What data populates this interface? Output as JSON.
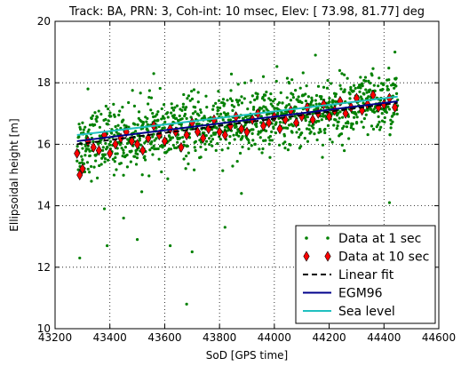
{
  "chart_data": {
    "type": "scatter",
    "title": "Track: BA, PRN: 3, Coh-int: 10 msec, Elev: [ 73.98,  81.77] deg",
    "xlabel": "SoD [GPS time]",
    "ylabel": "Ellipsoidal height [m]",
    "xlim": [
      43200,
      44600
    ],
    "ylim": [
      10,
      20
    ],
    "xticks": [
      43200,
      43400,
      43600,
      43800,
      44000,
      44200,
      44400,
      44600
    ],
    "yticks": [
      10,
      12,
      14,
      16,
      18,
      20
    ],
    "grid": true,
    "legend_position": "bottom-right",
    "x_range_data": [
      43280,
      44450
    ],
    "series": [
      {
        "name": "Data at 1 sec",
        "kind": "points",
        "marker": "dot",
        "color": "#008000",
        "trend": [
          [
            43280,
            16.0
          ],
          [
            44450,
            17.4
          ]
        ],
        "spread": 0.7,
        "outliers": [
          [
            43290,
            12.3
          ],
          [
            43380,
            13.9
          ],
          [
            43390,
            12.7
          ],
          [
            43450,
            13.6
          ],
          [
            43500,
            12.9
          ],
          [
            43620,
            12.7
          ],
          [
            43680,
            10.8
          ],
          [
            43700,
            12.5
          ],
          [
            43820,
            13.3
          ],
          [
            43880,
            14.4
          ],
          [
            44420,
            14.1
          ],
          [
            43560,
            18.3
          ],
          [
            44150,
            18.9
          ],
          [
            44440,
            19.0
          ],
          [
            43320,
            17.8
          ],
          [
            43960,
            18.2
          ]
        ]
      },
      {
        "name": "Data at 10 sec",
        "kind": "points",
        "marker": "diamond",
        "color": "#ff0000",
        "values": [
          [
            43280,
            15.7
          ],
          [
            43290,
            15.0
          ],
          [
            43300,
            15.2
          ],
          [
            43320,
            16.1
          ],
          [
            43340,
            15.9
          ],
          [
            43360,
            15.8
          ],
          [
            43380,
            16.3
          ],
          [
            43400,
            15.7
          ],
          [
            43420,
            16.0
          ],
          [
            43440,
            16.2
          ],
          [
            43460,
            16.4
          ],
          [
            43480,
            16.1
          ],
          [
            43500,
            16.0
          ],
          [
            43520,
            15.8
          ],
          [
            43540,
            16.2
          ],
          [
            43560,
            16.6
          ],
          [
            43580,
            16.3
          ],
          [
            43600,
            16.1
          ],
          [
            43620,
            16.5
          ],
          [
            43640,
            16.4
          ],
          [
            43660,
            15.9
          ],
          [
            43680,
            16.3
          ],
          [
            43700,
            16.7
          ],
          [
            43720,
            16.4
          ],
          [
            43740,
            16.2
          ],
          [
            43760,
            16.5
          ],
          [
            43780,
            16.8
          ],
          [
            43800,
            16.4
          ],
          [
            43820,
            16.3
          ],
          [
            43840,
            16.6
          ],
          [
            43860,
            16.9
          ],
          [
            43880,
            16.5
          ],
          [
            43900,
            16.4
          ],
          [
            43920,
            16.8
          ],
          [
            43940,
            17.0
          ],
          [
            43960,
            16.6
          ],
          [
            43980,
            16.7
          ],
          [
            44000,
            16.9
          ],
          [
            44020,
            16.5
          ],
          [
            44040,
            16.8
          ],
          [
            44060,
            17.1
          ],
          [
            44080,
            16.7
          ],
          [
            44100,
            16.9
          ],
          [
            44120,
            17.2
          ],
          [
            44140,
            16.8
          ],
          [
            44160,
            17.0
          ],
          [
            44180,
            17.3
          ],
          [
            44200,
            16.9
          ],
          [
            44220,
            17.1
          ],
          [
            44240,
            17.4
          ],
          [
            44260,
            17.0
          ],
          [
            44280,
            17.2
          ],
          [
            44300,
            17.5
          ],
          [
            44320,
            17.1
          ],
          [
            44340,
            17.3
          ],
          [
            44360,
            17.6
          ],
          [
            44380,
            17.2
          ],
          [
            44400,
            17.3
          ],
          [
            44420,
            17.5
          ],
          [
            44440,
            17.2
          ]
        ]
      },
      {
        "name": "Linear fit",
        "kind": "line",
        "style": "dashed",
        "color": "#000000",
        "values": [
          [
            43280,
            16.0
          ],
          [
            44450,
            17.35
          ]
        ]
      },
      {
        "name": "EGM96",
        "kind": "line",
        "style": "solid",
        "color": "#00008b",
        "values": [
          [
            43280,
            16.1
          ],
          [
            44450,
            17.4
          ]
        ]
      },
      {
        "name": "Sea level",
        "kind": "line",
        "style": "solid",
        "color": "#20c0c0",
        "values": [
          [
            43280,
            16.3
          ],
          [
            44450,
            17.55
          ]
        ]
      }
    ]
  }
}
